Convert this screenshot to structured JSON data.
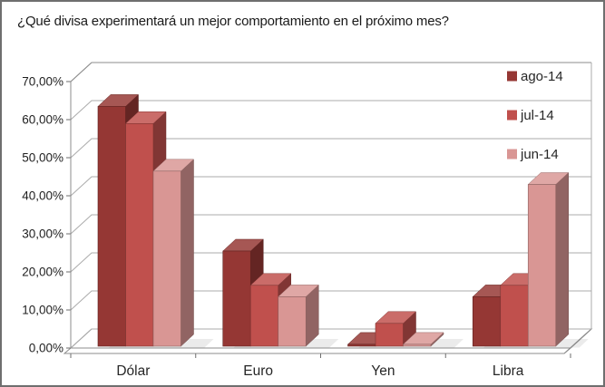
{
  "frame": {
    "border_color": "#6F6F6F",
    "background": "#FFFFFF"
  },
  "chart_data": {
    "type": "bar",
    "variant": "3d-clustered-column",
    "title": "¿Qué divisa experimentará un mejor comportamiento en el próximo mes?",
    "categories": [
      "Dólar",
      "Euro",
      "Yen",
      "Libra"
    ],
    "series": [
      {
        "name": "ago-14",
        "color": "#953734",
        "values": [
          63,
          25,
          0.5,
          13
        ]
      },
      {
        "name": "jul-14",
        "color": "#C0504D",
        "values": [
          58.5,
          16,
          6,
          16
        ]
      },
      {
        "name": "jun-14",
        "color": "#D99694",
        "values": [
          46,
          13,
          0.5,
          42.5
        ]
      }
    ],
    "y_axis": {
      "min": 0,
      "max": 70,
      "step": 10,
      "tick_labels": [
        "0,00%",
        "10,00%",
        "20,00%",
        "30,00%",
        "40,00%",
        "50,00%",
        "60,00%",
        "70,00%"
      ],
      "format": "0,00%"
    },
    "legend": {
      "position": "top-right"
    },
    "gridlines": true,
    "values_are_percent": true,
    "colors": {
      "gridline": "#ABABAB",
      "axis_line": "#8C8C8C",
      "text": "#1F1F1F"
    }
  }
}
